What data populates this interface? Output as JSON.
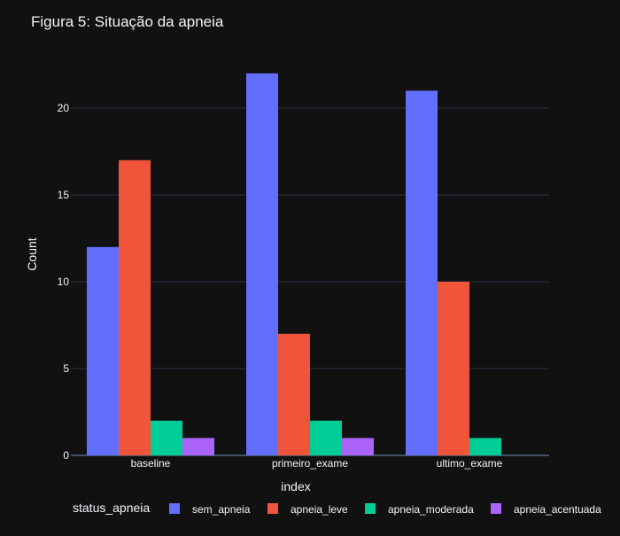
{
  "chart_data": {
    "type": "bar",
    "title": "Figura 5: Situação da apneia",
    "xlabel": "index",
    "ylabel": "Count",
    "categories": [
      "baseline",
      "primeiro_exame",
      "ultimo_exame"
    ],
    "ylim": [
      0,
      23
    ],
    "yticks": [
      0,
      5,
      10,
      15,
      20
    ],
    "grid": true,
    "legend": {
      "title": "status_apneia",
      "placement": "bottom"
    },
    "series": [
      {
        "name": "sem_apneia",
        "color": "#636efa",
        "values": [
          12,
          22,
          21
        ]
      },
      {
        "name": "apneia_leve",
        "color": "#ef553b",
        "values": [
          17,
          7,
          10
        ]
      },
      {
        "name": "apneia_moderada",
        "color": "#00cc96",
        "values": [
          2,
          2,
          1
        ]
      },
      {
        "name": "apneia_acentuada",
        "color": "#ab63fa",
        "values": [
          1,
          1,
          0
        ]
      }
    ]
  }
}
